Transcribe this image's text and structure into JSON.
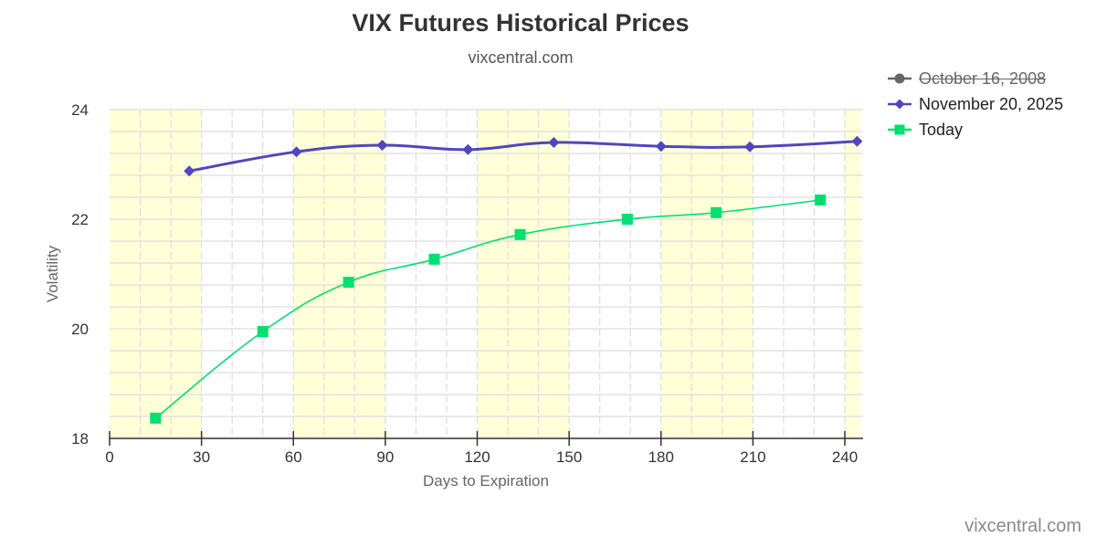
{
  "header": {
    "title": "VIX Futures Historical Prices",
    "subtitle": "vixcentral.com"
  },
  "legend": {
    "items": [
      {
        "label": "October 16, 2008",
        "color": "#666666",
        "marker": "circle",
        "hidden": true
      },
      {
        "label": "November 20, 2025",
        "color": "#4f46c0",
        "marker": "diamond",
        "hidden": false
      },
      {
        "label": "Today",
        "color": "#00e070",
        "marker": "square",
        "hidden": false
      }
    ]
  },
  "credit": "vixcentral.com",
  "colors": {
    "band": "#ffffd8",
    "grid": "#dddddd",
    "axis": "#333333"
  },
  "chart_data": {
    "type": "line",
    "title": "VIX Futures Historical Prices",
    "subtitle": "vixcentral.com",
    "xlabel": "Days to Expiration",
    "ylabel": "Volatility",
    "xlim": [
      0,
      245
    ],
    "ylim": [
      18,
      24
    ],
    "x_ticks": [
      0,
      30,
      60,
      90,
      120,
      150,
      180,
      210,
      240
    ],
    "y_ticks": [
      18,
      20,
      22,
      24
    ],
    "grid": true,
    "minor_y_step": 0.4,
    "minor_x_step": 10,
    "bands": [
      [
        0,
        30
      ],
      [
        60,
        90
      ],
      [
        120,
        150
      ],
      [
        180,
        210
      ],
      [
        240,
        245
      ]
    ],
    "legend_position": "top-right",
    "series": [
      {
        "name": "October 16, 2008",
        "hidden": true,
        "color": "#666666",
        "marker": "circle",
        "x": [],
        "values": []
      },
      {
        "name": "November 20, 2025",
        "hidden": false,
        "color": "#4f46c0",
        "marker": "diamond",
        "x": [
          26,
          61,
          89,
          117,
          145,
          180,
          209,
          244
        ],
        "values": [
          22.88,
          23.23,
          23.35,
          23.27,
          23.4,
          23.33,
          23.32,
          23.42
        ]
      },
      {
        "name": "Today",
        "hidden": false,
        "color": "#00e070",
        "marker": "square",
        "x": [
          15,
          50,
          78,
          106,
          134,
          169,
          198,
          232
        ],
        "values": [
          18.37,
          19.95,
          20.85,
          21.27,
          21.72,
          22.0,
          22.12,
          22.35
        ]
      }
    ]
  }
}
